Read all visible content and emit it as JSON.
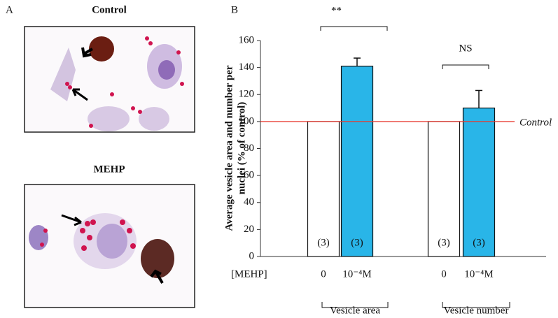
{
  "panel_a": {
    "label": "A",
    "images": [
      {
        "label": "Control"
      },
      {
        "label": "MEHP"
      }
    ]
  },
  "chart_data": {
    "type": "bar",
    "panel_label": "B",
    "ylabel": [
      "Average vesicle area and number per",
      "nuclei (% of control)"
    ],
    "ylim": [
      0,
      160
    ],
    "yticks": [
      0,
      20,
      40,
      60,
      80,
      100,
      120,
      140,
      160
    ],
    "x_row_label": "[MEHP]",
    "categories": [
      "0",
      "10⁻⁴M",
      "0",
      "10⁻⁴M"
    ],
    "values": [
      100,
      141,
      100,
      110
    ],
    "errors": [
      null,
      6,
      null,
      13
    ],
    "colors": [
      "#ffffff",
      "#29b5e8",
      "#ffffff",
      "#29b5e8"
    ],
    "n_labels": [
      "(3)",
      "(3)",
      "(3)",
      "(3)"
    ],
    "groups": [
      "Vesicle area",
      "Vesicle number"
    ],
    "significance": [
      "**",
      "NS"
    ],
    "reference_line": {
      "value": 100,
      "label": "Control",
      "color": "#e8392f"
    }
  }
}
